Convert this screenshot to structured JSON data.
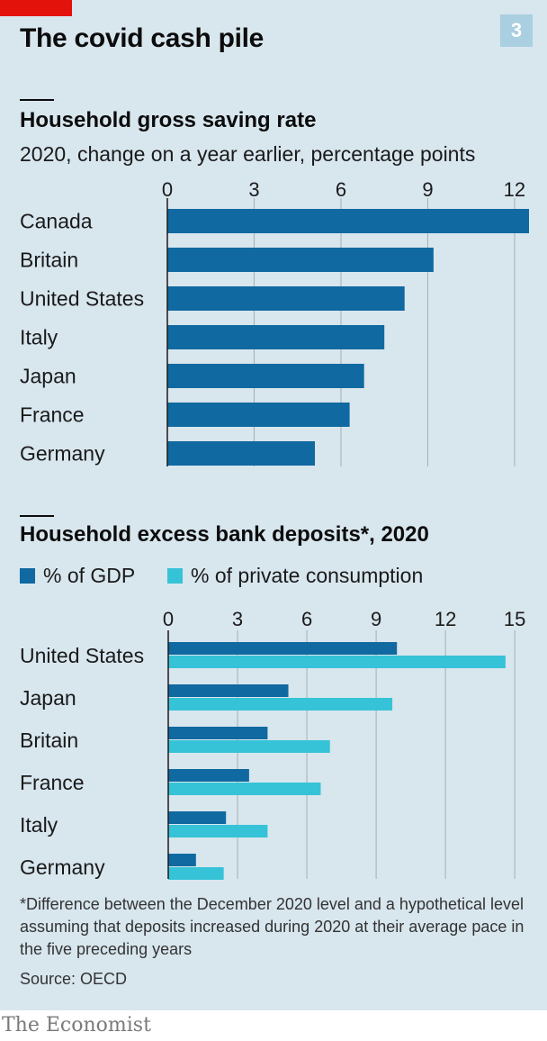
{
  "header": {
    "title": "The covid cash pile",
    "chart_number": "3"
  },
  "chart_data": [
    {
      "type": "bar",
      "title": "Household gross saving rate",
      "subtitle": "2020, change on a year earlier, percentage points",
      "categories": [
        "Canada",
        "Britain",
        "United States",
        "Italy",
        "Japan",
        "France",
        "Germany"
      ],
      "values": [
        12.5,
        9.2,
        8.2,
        7.5,
        6.8,
        6.3,
        5.1
      ],
      "xticks": [
        0,
        3,
        6,
        9,
        12
      ],
      "xlim": [
        0,
        12.5
      ],
      "grid": true,
      "color": "#1069a0"
    },
    {
      "type": "bar",
      "title": "Household excess bank deposits*, 2020",
      "categories": [
        "United States",
        "Japan",
        "Britain",
        "France",
        "Italy",
        "Germany"
      ],
      "series": [
        {
          "name": "% of GDP",
          "values": [
            9.9,
            5.2,
            4.3,
            3.5,
            2.5,
            1.2
          ],
          "color": "#1069a0"
        },
        {
          "name": "% of private consumption",
          "values": [
            14.6,
            9.7,
            7.0,
            6.6,
            4.3,
            2.4
          ],
          "color": "#36c3d7"
        }
      ],
      "xticks": [
        0,
        3,
        6,
        9,
        12,
        15
      ],
      "xlim": [
        0,
        15.5
      ],
      "grid": true,
      "legend": "top-left"
    }
  ],
  "footnote": "*Difference between the December 2020 level and a hypothetical level assuming that deposits increased during 2020 at their average pace in the five preceding years",
  "source": "Source: OECD",
  "brand": "The Economist"
}
